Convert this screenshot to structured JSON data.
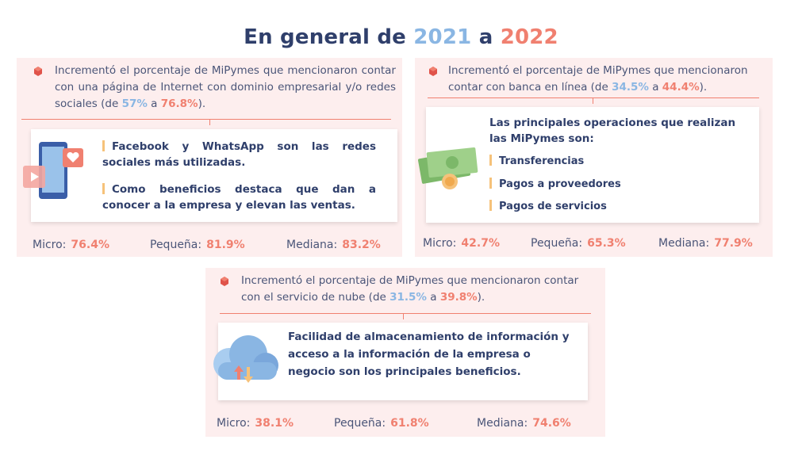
{
  "title": {
    "prefix": "En general de ",
    "year1": "2021",
    "mid": " a ",
    "year2": "2022"
  },
  "block_web": {
    "intro_text": "Incrementó el porcentaje de MiPymes que mencionaron contar con una página de Internet con dominio empresarial y/o redes sociales (de ",
    "from": "57%",
    "connector": " a ",
    "to": "76.8%",
    "tail": ").",
    "points": [
      "Facebook y WhatsApp son las redes sociales más utilizadas.",
      "Como beneficios destaca que dan a conocer a la empresa y elevan las ventas."
    ],
    "stats": [
      {
        "label": "Micro:",
        "value": "76.4%"
      },
      {
        "label": "Pequeña:",
        "value": "81.9%"
      },
      {
        "label": "Mediana:",
        "value": "83.2%"
      }
    ]
  },
  "block_bank": {
    "intro_text": "Incrementó el porcentaje de MiPymes que mencionaron contar con banca en línea (de ",
    "from": "34.5%",
    "connector": " a ",
    "to": "44.4%",
    "tail": ").",
    "heading": "Las principales operaciones que realizan las MiPymes son:",
    "items": [
      "Transferencias",
      "Pagos a proveedores",
      "Pagos de servicios"
    ],
    "stats": [
      {
        "label": "Micro:",
        "value": "42.7%"
      },
      {
        "label": "Pequeña:",
        "value": "65.3%"
      },
      {
        "label": "Mediana:",
        "value": "77.9%"
      }
    ]
  },
  "block_cloud": {
    "intro_text": "Incrementó el porcentaje de MiPymes que mencionaron contar con el servicio de nube (de ",
    "from": "31.5%",
    "connector": " a ",
    "to": "39.8%",
    "tail": ").",
    "text": "Facilidad de almacenamiento de información y acceso a la información de la empresa o negocio son los principales beneficios.",
    "stats": [
      {
        "label": "Micro:",
        "value": "38.1%"
      },
      {
        "label": "Pequeña:",
        "value": "61.8%"
      },
      {
        "label": "Mediana:",
        "value": "74.6%"
      }
    ]
  },
  "colors": {
    "navy": "#2f3f6b",
    "blue": "#8ab6e3",
    "coral": "#f08070",
    "panel": "#fdeeee",
    "accent_bar": "#f6c27a"
  },
  "icons": [
    "phone-social-icon",
    "money-icon",
    "cloud-icon",
    "cube-bullet-icon"
  ]
}
